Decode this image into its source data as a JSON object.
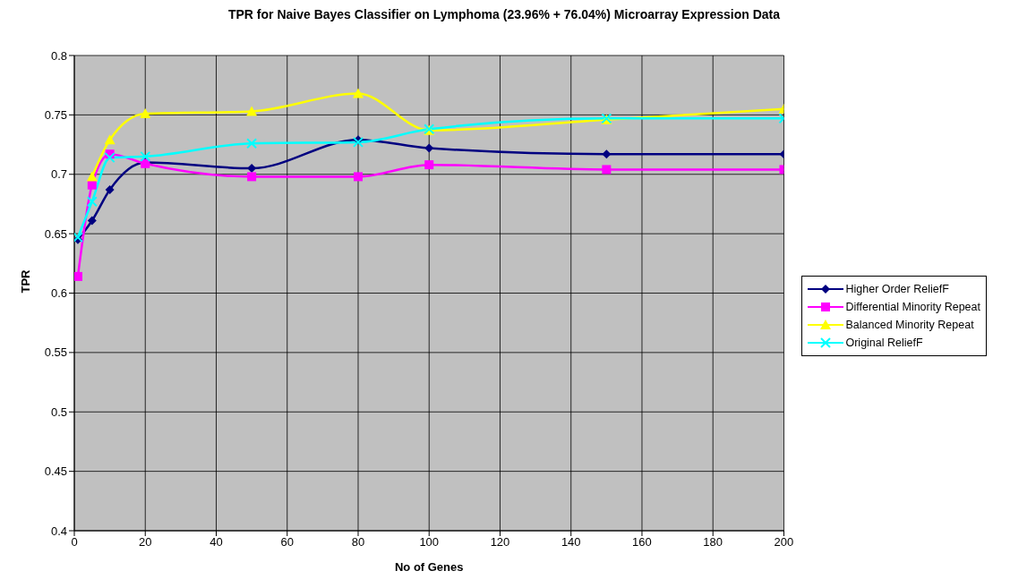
{
  "chart_data": {
    "type": "line",
    "title": "TPR for Naive Bayes Classifier on Lymphoma (23.96% + 76.04%) Microarray Expression Data",
    "xlabel": "No of Genes",
    "ylabel": "TPR",
    "x": [
      1,
      5,
      10,
      20,
      50,
      80,
      100,
      150,
      200
    ],
    "series": [
      {
        "name": "Higher Order ReliefF",
        "color": "#000080",
        "marker": "diamond",
        "values": [
          0.645,
          0.661,
          0.687,
          0.71,
          0.705,
          0.729,
          0.722,
          0.717,
          0.717
        ]
      },
      {
        "name": "Differential Minority Repeat",
        "color": "#ff00ff",
        "marker": "square",
        "values": [
          0.614,
          0.691,
          0.717,
          0.709,
          0.698,
          0.698,
          0.708,
          0.704,
          0.704
        ]
      },
      {
        "name": "Balanced Minority Repeat",
        "color": "#ffff00",
        "marker": "triangle",
        "values": [
          null,
          0.698,
          0.729,
          0.751,
          0.753,
          0.768,
          0.737,
          0.746,
          0.755
        ]
      },
      {
        "name": "Original ReliefF",
        "color": "#00ffff",
        "marker": "cross",
        "values": [
          0.647,
          0.677,
          0.714,
          0.715,
          0.726,
          0.727,
          0.738,
          0.747,
          0.747
        ]
      }
    ],
    "xlim": [
      0,
      200
    ],
    "xticks": [
      0,
      20,
      40,
      60,
      80,
      100,
      120,
      140,
      160,
      180,
      200
    ],
    "ylim": [
      0.4,
      0.8
    ],
    "yticks": [
      0.4,
      0.45,
      0.5,
      0.55,
      0.6,
      0.65,
      0.7,
      0.75,
      0.8
    ],
    "grid": true,
    "legend": "right",
    "line_style": "solid"
  }
}
